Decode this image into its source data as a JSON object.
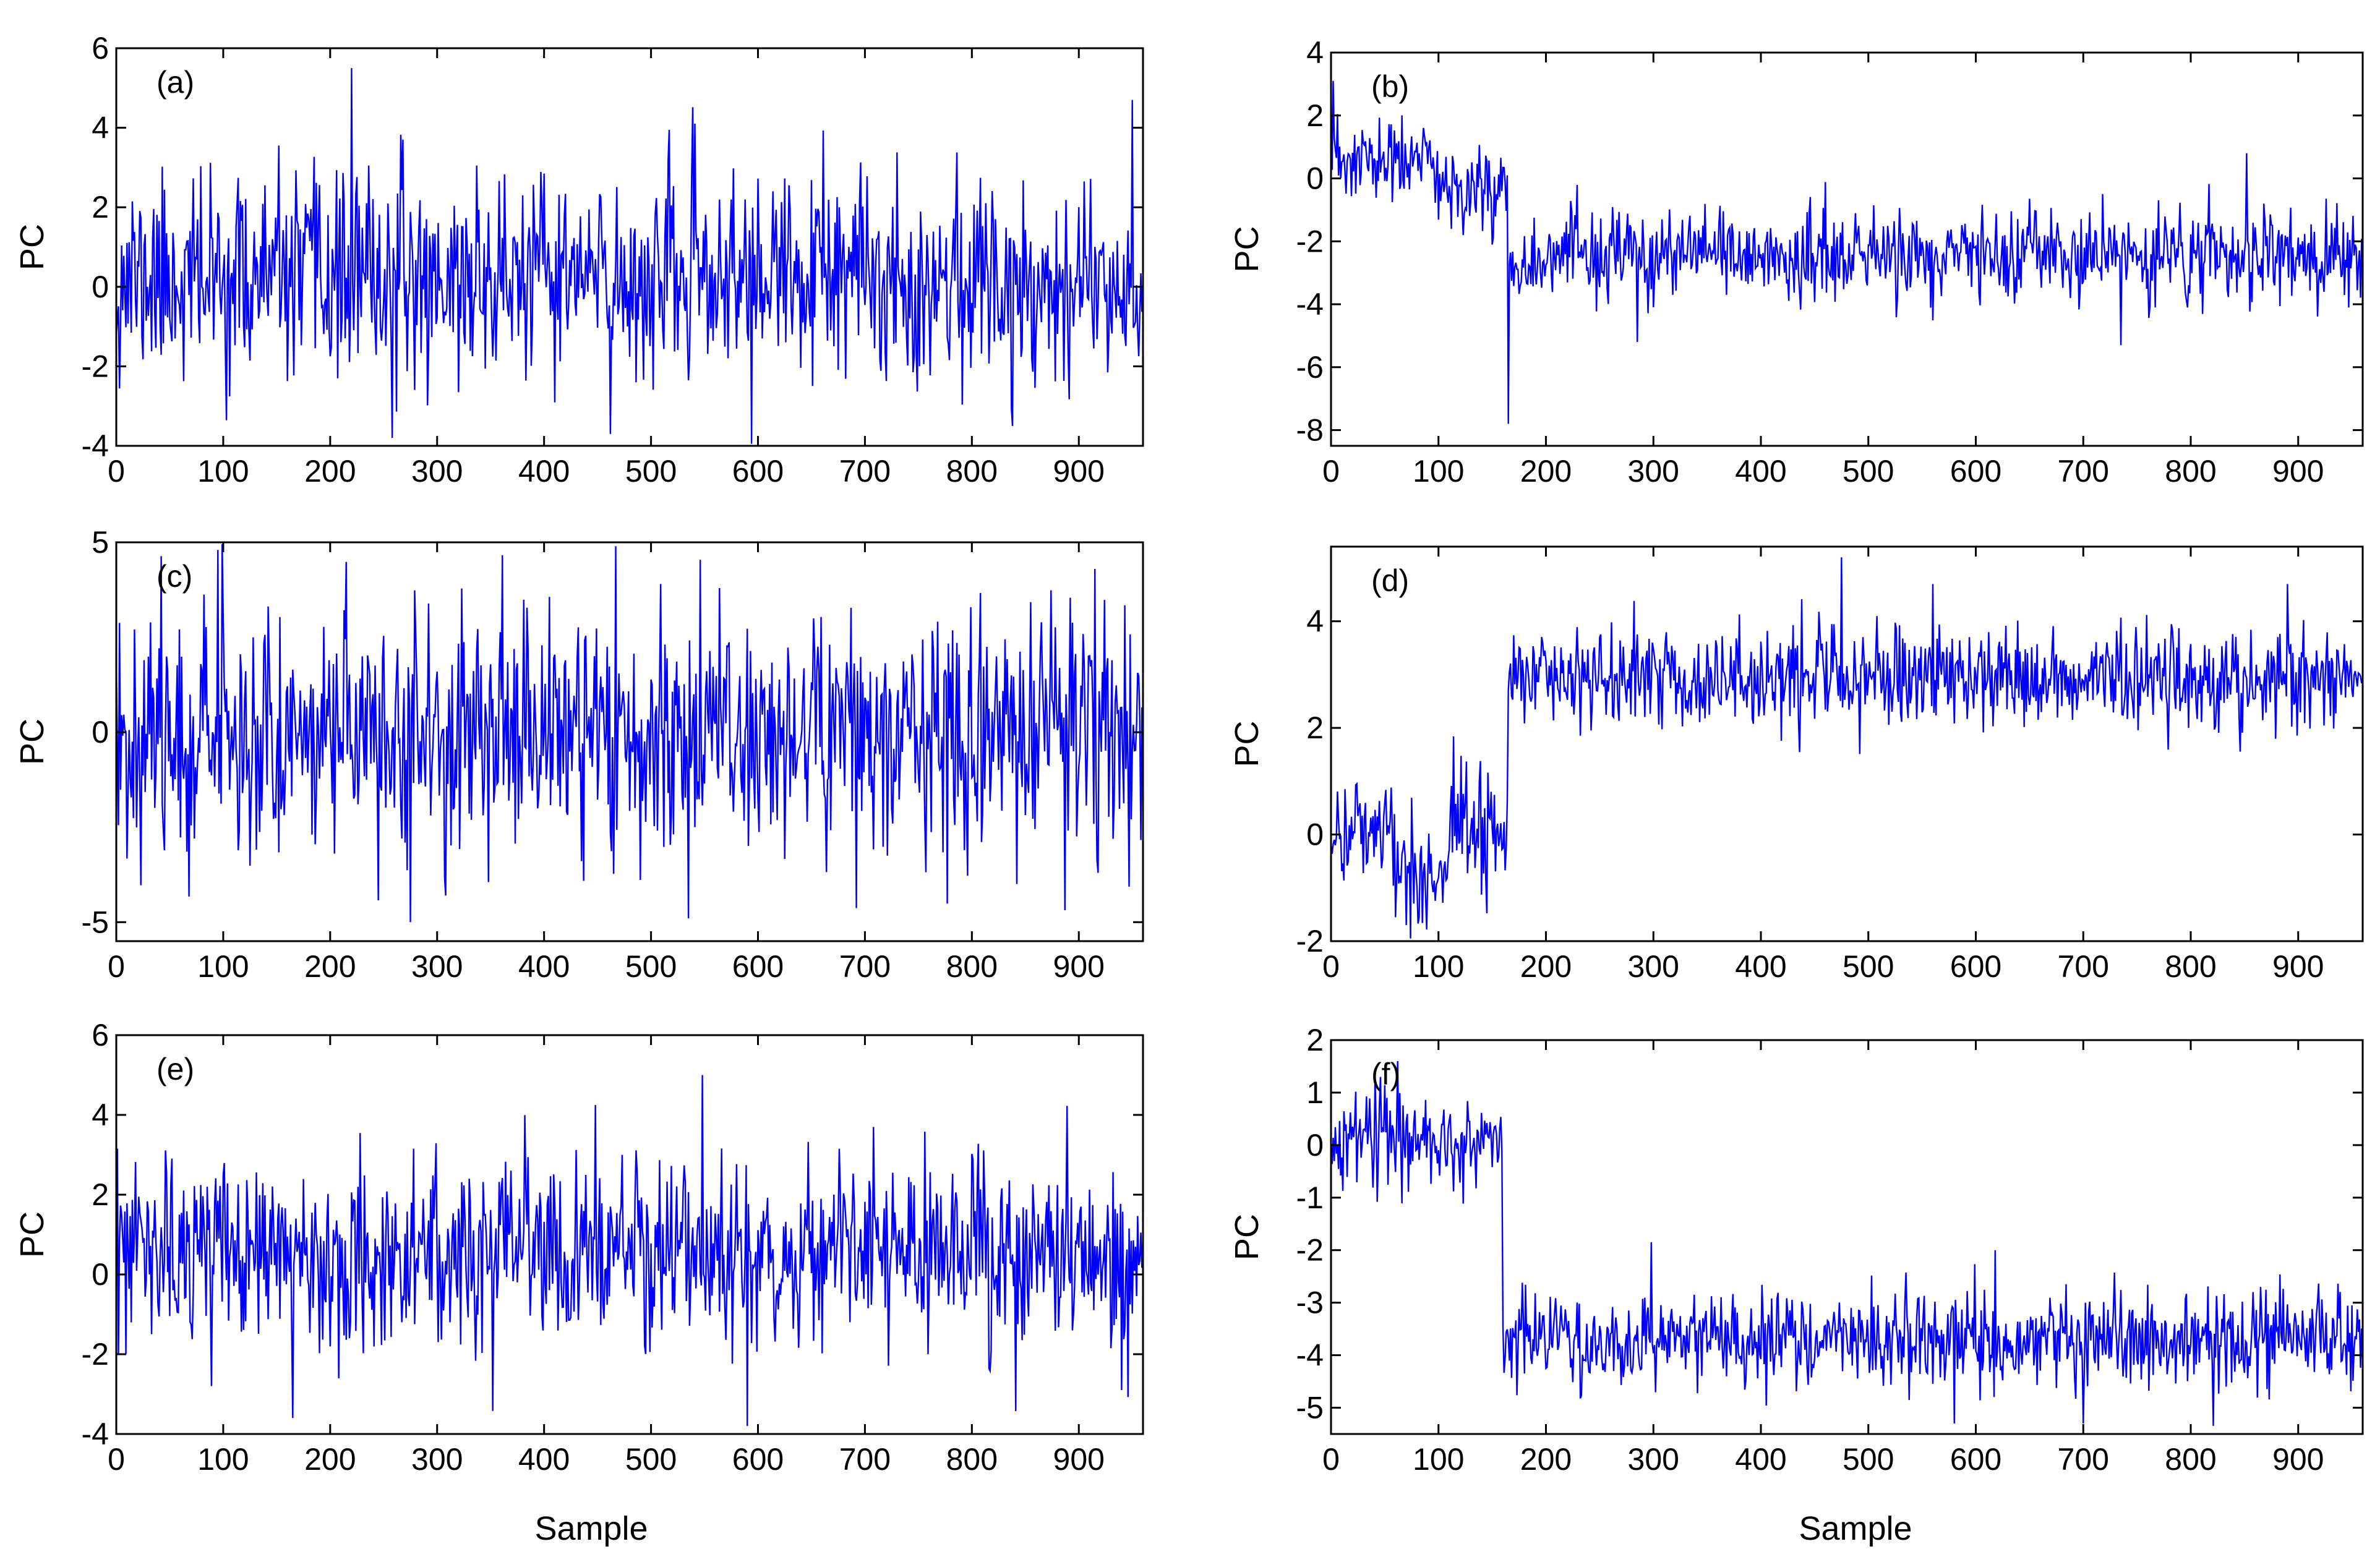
{
  "figure": {
    "x_axis_label": "Sample",
    "line_color": "#0000ff"
  },
  "chart_data": [
    {
      "type": "line",
      "panel_label": "(a)",
      "ylabel": "PC",
      "xlabel": "",
      "xlim": [
        0,
        960
      ],
      "ylim": [
        -4,
        6
      ],
      "x_ticks": [
        0,
        100,
        200,
        300,
        400,
        500,
        600,
        700,
        800,
        900
      ],
      "y_ticks": [
        -4,
        -2,
        0,
        2,
        4,
        6
      ],
      "grid": false,
      "n_samples": 960,
      "series": [
        {
          "color": "#0000ff",
          "level_segments": [
            {
              "x_start": 0,
              "x_end": 960,
              "level": 0.2
            }
          ],
          "noise_std": 1.25,
          "extreme_values": [
            [
              220,
              5.5
            ],
            [
              258,
              -3.8
            ],
            [
              462,
              -3.7
            ],
            [
              838,
              -3.5
            ],
            [
              950,
              4.7
            ]
          ],
          "seed": 11
        }
      ]
    },
    {
      "type": "line",
      "panel_label": "(b)",
      "ylabel": "PC",
      "xlabel": "",
      "xlim": [
        0,
        960
      ],
      "ylim": [
        -8.5,
        4
      ],
      "x_ticks": [
        0,
        100,
        200,
        300,
        400,
        500,
        600,
        700,
        800,
        900
      ],
      "y_ticks": [
        -8,
        -6,
        -4,
        -2,
        0,
        2,
        4
      ],
      "grid": false,
      "n_samples": 960,
      "series": [
        {
          "color": "#0000ff",
          "level_segments": [
            {
              "x_start": 0,
              "x_end": 100,
              "level": 0.5
            },
            {
              "x_start": 100,
              "x_end": 165,
              "level": -0.3
            },
            {
              "x_start": 165,
              "x_end": 960,
              "level": -2.5
            }
          ],
          "noise_std": 0.7,
          "extreme_values": [
            [
              2,
              3.1
            ],
            [
              165,
              -7.8
            ],
            [
              285,
              -5.2
            ],
            [
              735,
              -5.3
            ],
            [
              852,
              0.8
            ]
          ],
          "seed": 23
        }
      ]
    },
    {
      "type": "line",
      "panel_label": "(c)",
      "ylabel": "PC",
      "xlabel": "",
      "xlim": [
        0,
        960
      ],
      "ylim": [
        -5.5,
        5
      ],
      "x_ticks": [
        0,
        100,
        200,
        300,
        400,
        500,
        600,
        700,
        800,
        900
      ],
      "y_ticks": [
        -5,
        0,
        5
      ],
      "grid": false,
      "n_samples": 960,
      "series": [
        {
          "color": "#0000ff",
          "level_segments": [
            {
              "x_start": 0,
              "x_end": 960,
              "level": 0
            }
          ],
          "noise_std": 1.6,
          "extreme_values": [
            [
              95,
              4.8
            ],
            [
              275,
              -5.0
            ],
            [
              535,
              -4.9
            ],
            [
              915,
              4.3
            ]
          ],
          "seed": 37
        }
      ]
    },
    {
      "type": "line",
      "panel_label": "(d)",
      "ylabel": "PC",
      "xlabel": "",
      "xlim": [
        0,
        960
      ],
      "ylim": [
        -2,
        5.4
      ],
      "x_ticks": [
        0,
        100,
        200,
        300,
        400,
        500,
        600,
        700,
        800,
        900
      ],
      "y_ticks": [
        -2,
        0,
        2,
        4
      ],
      "grid": false,
      "n_samples": 960,
      "series": [
        {
          "color": "#0000ff",
          "level_segments": [
            {
              "x_start": 0,
              "x_end": 60,
              "level": 0.1
            },
            {
              "x_start": 60,
              "x_end": 110,
              "level": -0.7
            },
            {
              "x_start": 110,
              "x_end": 165,
              "level": 0.2
            },
            {
              "x_start": 165,
              "x_end": 960,
              "level": 2.95
            }
          ],
          "noise_std": 0.5,
          "extreme_values": [
            [
              70,
              -1.7
            ],
            [
              475,
              5.2
            ],
            [
              560,
              4.7
            ],
            [
              890,
              4.7
            ]
          ],
          "seed": 41
        }
      ]
    },
    {
      "type": "line",
      "panel_label": "(e)",
      "ylabel": "PC",
      "xlabel": "Sample",
      "xlim": [
        0,
        960
      ],
      "ylim": [
        -4,
        6
      ],
      "x_ticks": [
        0,
        100,
        200,
        300,
        400,
        500,
        600,
        700,
        800,
        900
      ],
      "y_ticks": [
        -4,
        -2,
        0,
        2,
        4,
        6
      ],
      "grid": false,
      "n_samples": 960,
      "series": [
        {
          "color": "#0000ff",
          "level_segments": [
            {
              "x_start": 0,
              "x_end": 960,
              "level": 0.5
            }
          ],
          "noise_std": 1.15,
          "extreme_values": [
            [
              548,
              5.0
            ],
            [
              590,
              -3.8
            ],
            [
              165,
              -3.6
            ],
            [
              940,
              -2.9
            ]
          ],
          "seed": 53
        }
      ]
    },
    {
      "type": "line",
      "panel_label": "(f)",
      "ylabel": "PC",
      "xlabel": "Sample",
      "xlim": [
        0,
        960
      ],
      "ylim": [
        -5.5,
        2
      ],
      "x_ticks": [
        0,
        100,
        200,
        300,
        400,
        500,
        600,
        700,
        800,
        900
      ],
      "y_ticks": [
        -5,
        -4,
        -3,
        -2,
        -1,
        0,
        1,
        2
      ],
      "grid": false,
      "n_samples": 960,
      "series": [
        {
          "color": "#0000ff",
          "level_segments": [
            {
              "x_start": 0,
              "x_end": 160,
              "level": 0.1
            },
            {
              "x_start": 160,
              "x_end": 960,
              "level": -3.7
            }
          ],
          "noise_std": 0.45,
          "extreme_values": [
            [
              62,
              1.6
            ],
            [
              580,
              -5.3
            ],
            [
              700,
              -5.3
            ],
            [
              618,
              -2.0
            ]
          ],
          "seed": 67
        }
      ]
    }
  ]
}
